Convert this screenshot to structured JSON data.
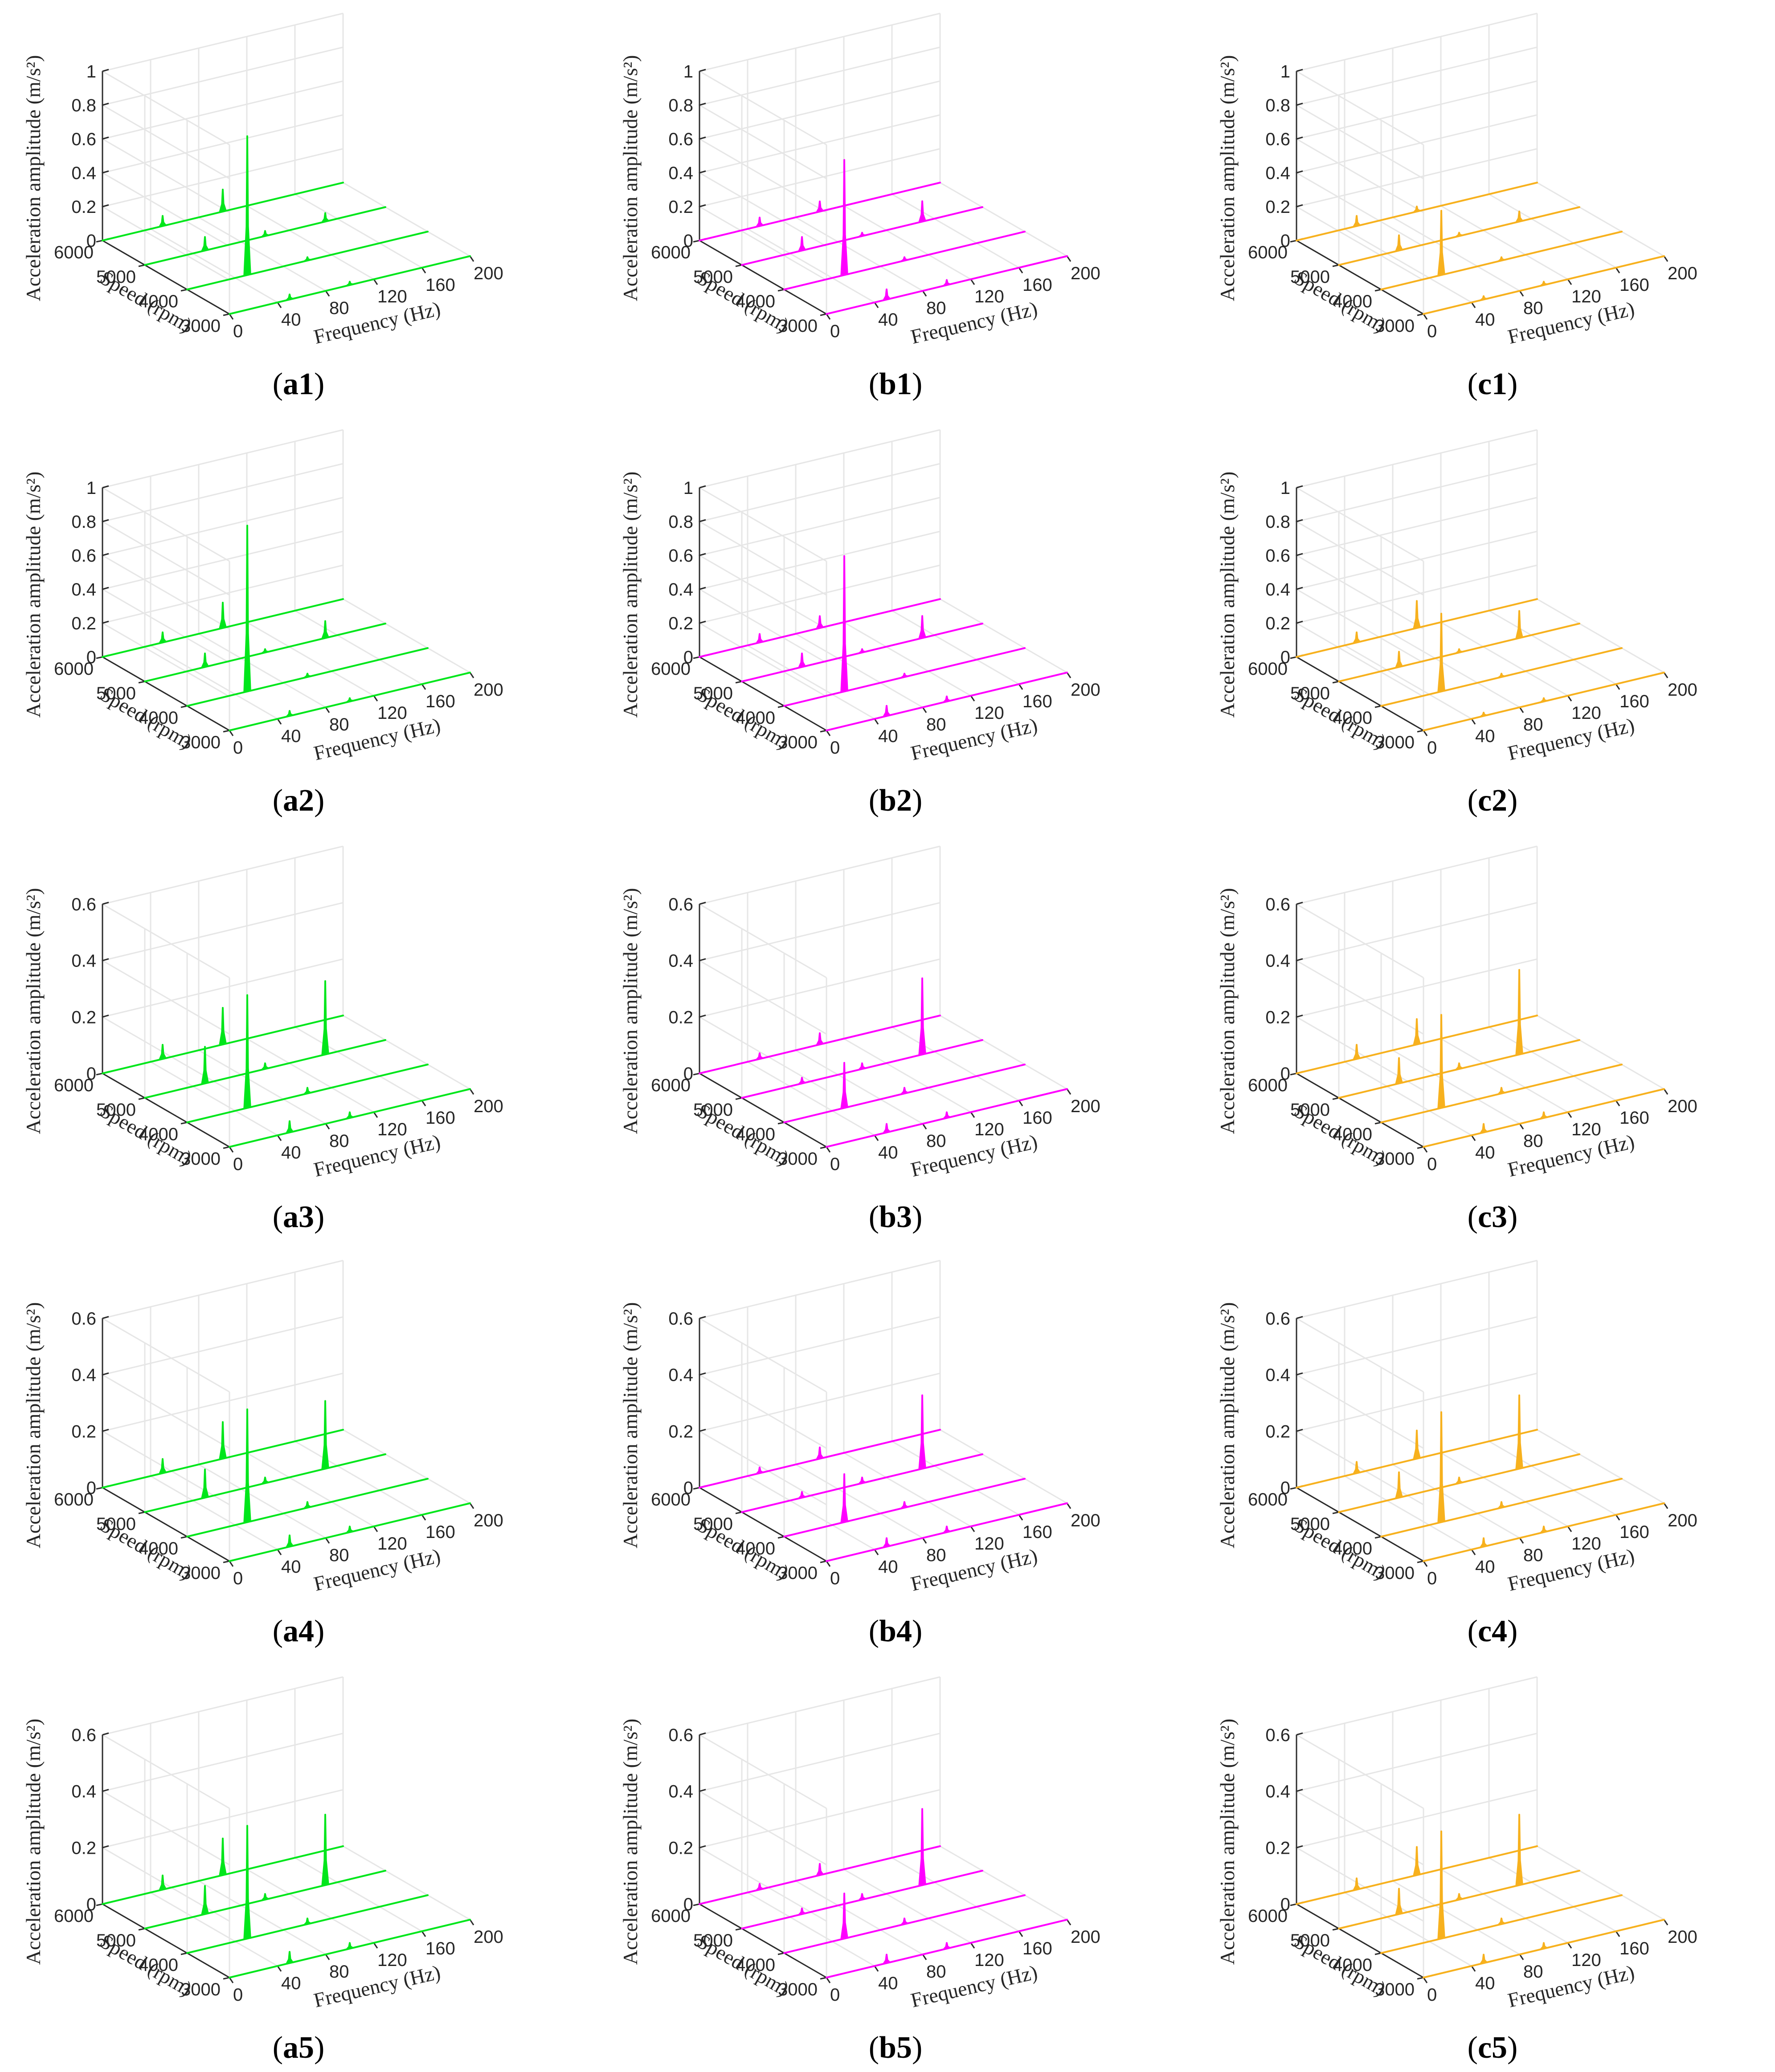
{
  "figure": {
    "z_title": "Acceleration amplitude (m/s²)",
    "speed_title": "Speed (rpm)",
    "freq_title": "Frequency (Hz)"
  },
  "chart_data": [
    {
      "id": "a1",
      "caption": {
        "letter": "a",
        "num": "1"
      },
      "type": "waterfall",
      "color": "#00e61b",
      "zlim": [
        0,
        1
      ],
      "zticks": [
        "0",
        "0.2",
        "0.4",
        "0.6",
        "0.8",
        "1"
      ],
      "speeds": [
        6000,
        5000,
        4000,
        3000
      ],
      "speed_ticks": [
        "6000",
        "5000",
        "4000",
        "3000"
      ],
      "freq_ticks": [
        "0",
        "40",
        "80",
        "120",
        "160",
        "200"
      ],
      "xlim": [
        0,
        200
      ],
      "peaks": [
        [
          [
            50,
            0.06
          ],
          [
            100,
            0.13
          ]
        ],
        [
          [
            50,
            0.08
          ],
          [
            100,
            0.03
          ],
          [
            150,
            0.05
          ]
        ],
        [
          [
            50,
            0.82
          ],
          [
            100,
            0.02
          ]
        ],
        [
          [
            50,
            0.03
          ],
          [
            100,
            0.02
          ]
        ]
      ]
    },
    {
      "id": "b1",
      "caption": {
        "letter": "b",
        "num": "1"
      },
      "type": "waterfall",
      "color": "#ff00ff",
      "zlim": [
        0,
        1
      ],
      "zticks": [
        "0",
        "0.2",
        "0.4",
        "0.6",
        "0.8",
        "1"
      ],
      "speeds": [
        6000,
        5000,
        4000,
        3000
      ],
      "speed_ticks": [
        "6000",
        "5000",
        "4000",
        "3000"
      ],
      "freq_ticks": [
        "0",
        "40",
        "80",
        "120",
        "160",
        "200"
      ],
      "xlim": [
        0,
        200
      ],
      "peaks": [
        [
          [
            50,
            0.05
          ],
          [
            100,
            0.06
          ]
        ],
        [
          [
            50,
            0.08
          ],
          [
            100,
            0.02
          ],
          [
            150,
            0.12
          ]
        ],
        [
          [
            50,
            0.68
          ],
          [
            100,
            0.02
          ]
        ],
        [
          [
            50,
            0.06
          ],
          [
            100,
            0.03
          ]
        ]
      ]
    },
    {
      "id": "c1",
      "caption": {
        "letter": "c",
        "num": "1"
      },
      "type": "waterfall",
      "color": "#f7b11e",
      "zlim": [
        0,
        1
      ],
      "zticks": [
        "0",
        "0.2",
        "0.4",
        "0.6",
        "0.8",
        "1"
      ],
      "speeds": [
        6000,
        5000,
        4000,
        3000
      ],
      "speed_ticks": [
        "6000",
        "5000",
        "4000",
        "3000"
      ],
      "freq_ticks": [
        "0",
        "40",
        "80",
        "120",
        "160",
        "200"
      ],
      "xlim": [
        0,
        200
      ],
      "peaks": [
        [
          [
            50,
            0.06
          ],
          [
            100,
            0.03
          ]
        ],
        [
          [
            50,
            0.09
          ],
          [
            100,
            0.02
          ],
          [
            150,
            0.06
          ]
        ],
        [
          [
            50,
            0.38
          ],
          [
            100,
            0.02
          ]
        ],
        [
          [
            50,
            0.02
          ],
          [
            100,
            0.02
          ]
        ]
      ]
    },
    {
      "id": "a2",
      "caption": {
        "letter": "a",
        "num": "2"
      },
      "type": "waterfall",
      "color": "#00e61b",
      "zlim": [
        0,
        1
      ],
      "zticks": [
        "0",
        "0.2",
        "0.4",
        "0.6",
        "0.8",
        "1"
      ],
      "speeds": [
        6000,
        5000,
        4000,
        3000
      ],
      "speed_ticks": [
        "6000",
        "5000",
        "4000",
        "3000"
      ],
      "freq_ticks": [
        "0",
        "40",
        "80",
        "120",
        "160",
        "200"
      ],
      "xlim": [
        0,
        200
      ],
      "peaks": [
        [
          [
            50,
            0.06
          ],
          [
            100,
            0.15
          ]
        ],
        [
          [
            50,
            0.08
          ],
          [
            100,
            0.02
          ],
          [
            150,
            0.1
          ]
        ],
        [
          [
            50,
            0.98
          ],
          [
            100,
            0.02
          ]
        ],
        [
          [
            50,
            0.03
          ],
          [
            100,
            0.02
          ]
        ]
      ]
    },
    {
      "id": "b2",
      "caption": {
        "letter": "b",
        "num": "2"
      },
      "type": "waterfall",
      "color": "#ff00ff",
      "zlim": [
        0,
        1
      ],
      "zticks": [
        "0",
        "0.2",
        "0.4",
        "0.6",
        "0.8",
        "1"
      ],
      "speeds": [
        6000,
        5000,
        4000,
        3000
      ],
      "speed_ticks": [
        "6000",
        "5000",
        "4000",
        "3000"
      ],
      "freq_ticks": [
        "0",
        "40",
        "80",
        "120",
        "160",
        "200"
      ],
      "xlim": [
        0,
        200
      ],
      "peaks": [
        [
          [
            50,
            0.05
          ],
          [
            100,
            0.07
          ]
        ],
        [
          [
            50,
            0.08
          ],
          [
            100,
            0.02
          ],
          [
            150,
            0.13
          ]
        ],
        [
          [
            50,
            0.8
          ],
          [
            100,
            0.02
          ]
        ],
        [
          [
            50,
            0.06
          ],
          [
            100,
            0.03
          ]
        ]
      ]
    },
    {
      "id": "c2",
      "caption": {
        "letter": "c",
        "num": "2"
      },
      "type": "waterfall",
      "color": "#f7b11e",
      "zlim": [
        0,
        1
      ],
      "zticks": [
        "0",
        "0.2",
        "0.4",
        "0.6",
        "0.8",
        "1"
      ],
      "speeds": [
        6000,
        5000,
        4000,
        3000
      ],
      "speed_ticks": [
        "6000",
        "5000",
        "4000",
        "3000"
      ],
      "freq_ticks": [
        "0",
        "40",
        "80",
        "120",
        "160",
        "200"
      ],
      "xlim": [
        0,
        200
      ],
      "peaks": [
        [
          [
            50,
            0.06
          ],
          [
            100,
            0.16
          ]
        ],
        [
          [
            50,
            0.09
          ],
          [
            100,
            0.02
          ],
          [
            150,
            0.16
          ]
        ],
        [
          [
            50,
            0.46
          ],
          [
            100,
            0.02
          ]
        ],
        [
          [
            50,
            0.02
          ],
          [
            100,
            0.02
          ]
        ]
      ]
    },
    {
      "id": "a3",
      "caption": {
        "letter": "a",
        "num": "3"
      },
      "type": "waterfall",
      "color": "#00e61b",
      "zlim": [
        0,
        0.6
      ],
      "zticks": [
        "0",
        "0.2",
        "0.4",
        "0.6"
      ],
      "speeds": [
        6000,
        5000,
        4000,
        3000
      ],
      "speed_ticks": [
        "6000",
        "5000",
        "4000",
        "3000"
      ],
      "freq_ticks": [
        "0",
        "40",
        "80",
        "120",
        "160",
        "200"
      ],
      "xlim": [
        0,
        200
      ],
      "peaks": [
        [
          [
            50,
            0.05
          ],
          [
            100,
            0.13
          ]
        ],
        [
          [
            50,
            0.13
          ],
          [
            100,
            0.02
          ],
          [
            150,
            0.26
          ]
        ],
        [
          [
            50,
            0.4
          ],
          [
            100,
            0.02
          ]
        ],
        [
          [
            50,
            0.04
          ],
          [
            100,
            0.02
          ]
        ]
      ]
    },
    {
      "id": "b3",
      "caption": {
        "letter": "b",
        "num": "3"
      },
      "type": "waterfall",
      "color": "#ff00ff",
      "zlim": [
        0,
        0.6
      ],
      "zticks": [
        "0",
        "0.2",
        "0.4",
        "0.6"
      ],
      "speeds": [
        6000,
        5000,
        4000,
        3000
      ],
      "speed_ticks": [
        "6000",
        "5000",
        "4000",
        "3000"
      ],
      "freq_ticks": [
        "0",
        "40",
        "80",
        "120",
        "160",
        "200"
      ],
      "xlim": [
        0,
        200
      ],
      "peaks": [
        [
          [
            50,
            0.02
          ],
          [
            100,
            0.04
          ]
        ],
        [
          [
            50,
            0.02
          ],
          [
            100,
            0.02
          ],
          [
            150,
            0.27
          ]
        ],
        [
          [
            50,
            0.16
          ],
          [
            100,
            0.02
          ]
        ],
        [
          [
            50,
            0.03
          ],
          [
            100,
            0.02
          ]
        ]
      ]
    },
    {
      "id": "c3",
      "caption": {
        "letter": "c",
        "num": "3"
      },
      "type": "waterfall",
      "color": "#f7b11e",
      "zlim": [
        0,
        0.6
      ],
      "zticks": [
        "0",
        "0.2",
        "0.4",
        "0.6"
      ],
      "speeds": [
        6000,
        5000,
        4000,
        3000
      ],
      "speed_ticks": [
        "6000",
        "5000",
        "4000",
        "3000"
      ],
      "freq_ticks": [
        "0",
        "40",
        "80",
        "120",
        "160",
        "200"
      ],
      "xlim": [
        0,
        200
      ],
      "peaks": [
        [
          [
            50,
            0.05
          ],
          [
            100,
            0.09
          ]
        ],
        [
          [
            50,
            0.09
          ],
          [
            100,
            0.02
          ],
          [
            150,
            0.3
          ]
        ],
        [
          [
            50,
            0.33
          ],
          [
            100,
            0.02
          ]
        ],
        [
          [
            50,
            0.03
          ],
          [
            100,
            0.02
          ]
        ]
      ]
    },
    {
      "id": "a4",
      "caption": {
        "letter": "a",
        "num": "4"
      },
      "type": "waterfall",
      "color": "#00e61b",
      "zlim": [
        0,
        0.6
      ],
      "zticks": [
        "0",
        "0.2",
        "0.4",
        "0.6"
      ],
      "speeds": [
        6000,
        5000,
        4000,
        3000
      ],
      "speed_ticks": [
        "6000",
        "5000",
        "4000",
        "3000"
      ],
      "freq_ticks": [
        "0",
        "40",
        "80",
        "120",
        "160",
        "200"
      ],
      "xlim": [
        0,
        200
      ],
      "peaks": [
        [
          [
            50,
            0.05
          ],
          [
            100,
            0.13
          ]
        ],
        [
          [
            50,
            0.1
          ],
          [
            100,
            0.02
          ],
          [
            150,
            0.24
          ]
        ],
        [
          [
            50,
            0.4
          ],
          [
            100,
            0.02
          ]
        ],
        [
          [
            50,
            0.04
          ],
          [
            100,
            0.02
          ]
        ]
      ]
    },
    {
      "id": "b4",
      "caption": {
        "letter": "b",
        "num": "4"
      },
      "type": "waterfall",
      "color": "#ff00ff",
      "zlim": [
        0,
        0.6
      ],
      "zticks": [
        "0",
        "0.2",
        "0.4",
        "0.6"
      ],
      "speeds": [
        6000,
        5000,
        4000,
        3000
      ],
      "speed_ticks": [
        "6000",
        "5000",
        "4000",
        "3000"
      ],
      "freq_ticks": [
        "0",
        "40",
        "80",
        "120",
        "160",
        "200"
      ],
      "xlim": [
        0,
        200
      ],
      "peaks": [
        [
          [
            50,
            0.02
          ],
          [
            100,
            0.04
          ]
        ],
        [
          [
            50,
            0.02
          ],
          [
            100,
            0.02
          ],
          [
            150,
            0.26
          ]
        ],
        [
          [
            50,
            0.17
          ],
          [
            100,
            0.02
          ]
        ],
        [
          [
            50,
            0.03
          ],
          [
            100,
            0.02
          ]
        ]
      ]
    },
    {
      "id": "c4",
      "caption": {
        "letter": "c",
        "num": "4"
      },
      "type": "waterfall",
      "color": "#f7b11e",
      "zlim": [
        0,
        0.6
      ],
      "zticks": [
        "0",
        "0.2",
        "0.4",
        "0.6"
      ],
      "speeds": [
        6000,
        5000,
        4000,
        3000
      ],
      "speed_ticks": [
        "6000",
        "5000",
        "4000",
        "3000"
      ],
      "freq_ticks": [
        "0",
        "40",
        "80",
        "120",
        "160",
        "200"
      ],
      "xlim": [
        0,
        200
      ],
      "peaks": [
        [
          [
            50,
            0.04
          ],
          [
            100,
            0.1
          ]
        ],
        [
          [
            50,
            0.09
          ],
          [
            100,
            0.02
          ],
          [
            150,
            0.26
          ]
        ],
        [
          [
            50,
            0.39
          ],
          [
            100,
            0.02
          ]
        ],
        [
          [
            50,
            0.03
          ],
          [
            100,
            0.02
          ]
        ]
      ]
    },
    {
      "id": "a5",
      "caption": {
        "letter": "a",
        "num": "5"
      },
      "type": "waterfall",
      "color": "#00e61b",
      "zlim": [
        0,
        0.6
      ],
      "zticks": [
        "0",
        "0.2",
        "0.4",
        "0.6"
      ],
      "speeds": [
        6000,
        5000,
        4000,
        3000
      ],
      "speed_ticks": [
        "6000",
        "5000",
        "4000",
        "3000"
      ],
      "freq_ticks": [
        "0",
        "40",
        "80",
        "120",
        "160",
        "200"
      ],
      "xlim": [
        0,
        200
      ],
      "peaks": [
        [
          [
            50,
            0.05
          ],
          [
            100,
            0.13
          ]
        ],
        [
          [
            50,
            0.1
          ],
          [
            100,
            0.02
          ],
          [
            150,
            0.25
          ]
        ],
        [
          [
            50,
            0.4
          ],
          [
            100,
            0.02
          ]
        ],
        [
          [
            50,
            0.04
          ],
          [
            100,
            0.02
          ]
        ]
      ]
    },
    {
      "id": "b5",
      "caption": {
        "letter": "b",
        "num": "5"
      },
      "type": "waterfall",
      "color": "#ff00ff",
      "zlim": [
        0,
        0.6
      ],
      "zticks": [
        "0",
        "0.2",
        "0.4",
        "0.6"
      ],
      "speeds": [
        6000,
        5000,
        4000,
        3000
      ],
      "speed_ticks": [
        "6000",
        "5000",
        "4000",
        "3000"
      ],
      "freq_ticks": [
        "0",
        "40",
        "80",
        "120",
        "160",
        "200"
      ],
      "xlim": [
        0,
        200
      ],
      "peaks": [
        [
          [
            50,
            0.02
          ],
          [
            100,
            0.04
          ]
        ],
        [
          [
            50,
            0.02
          ],
          [
            100,
            0.02
          ],
          [
            150,
            0.27
          ]
        ],
        [
          [
            50,
            0.16
          ],
          [
            100,
            0.02
          ]
        ],
        [
          [
            50,
            0.03
          ],
          [
            100,
            0.02
          ]
        ]
      ]
    },
    {
      "id": "c5",
      "caption": {
        "letter": "c",
        "num": "5"
      },
      "type": "waterfall",
      "color": "#f7b11e",
      "zlim": [
        0,
        0.6
      ],
      "zticks": [
        "0",
        "0.2",
        "0.4",
        "0.6"
      ],
      "speeds": [
        6000,
        5000,
        4000,
        3000
      ],
      "speed_ticks": [
        "6000",
        "5000",
        "4000",
        "3000"
      ],
      "freq_ticks": [
        "0",
        "40",
        "80",
        "120",
        "160",
        "200"
      ],
      "xlim": [
        0,
        200
      ],
      "peaks": [
        [
          [
            50,
            0.04
          ],
          [
            100,
            0.1
          ]
        ],
        [
          [
            50,
            0.09
          ],
          [
            100,
            0.02
          ],
          [
            150,
            0.25
          ]
        ],
        [
          [
            50,
            0.38
          ],
          [
            100,
            0.02
          ]
        ],
        [
          [
            50,
            0.03
          ],
          [
            100,
            0.02
          ]
        ]
      ]
    }
  ]
}
